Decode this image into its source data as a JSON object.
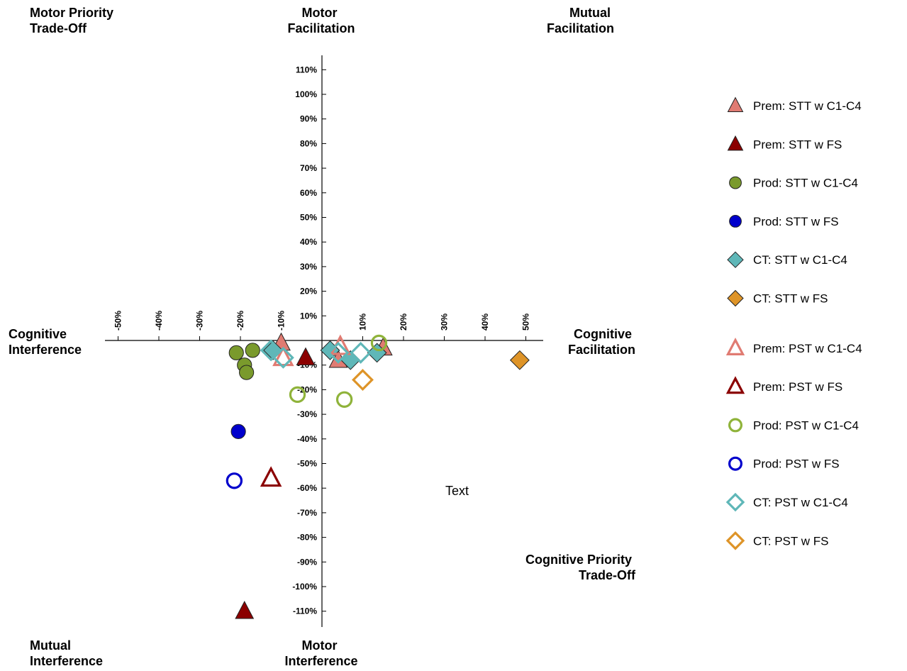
{
  "chart_data": {
    "type": "scatter",
    "title": "",
    "xlabel": "",
    "ylabel": "",
    "xlim": [
      -50,
      50
    ],
    "ylim": [
      -110,
      110
    ],
    "x_ticks": [
      "-50%",
      "-40%",
      "-30%",
      "-20%",
      "-10%",
      "10%",
      "20%",
      "30%",
      "40%",
      "50%"
    ],
    "y_ticks": [
      "110%",
      "100%",
      "90%",
      "80%",
      "70%",
      "60%",
      "50%",
      "40%",
      "30%",
      "20%",
      "10%",
      "-10%",
      "-20%",
      "-30%",
      "-40%",
      "-50%",
      "-60%",
      "-70%",
      "-80%",
      "-90%",
      "-100%",
      "-110%"
    ],
    "quadrant_labels": {
      "top_left": [
        "Motor Priority",
        "Trade-Off"
      ],
      "top_center": [
        "Motor",
        "Facilitation"
      ],
      "top_right": [
        "Mutual",
        "Facilitation"
      ],
      "left": [
        "Cognitive",
        "Interference"
      ],
      "right": [
        "Cognitive",
        "Facilitation"
      ],
      "bottom_right": [
        "Cognitive Priority",
        "Trade-Off"
      ],
      "bottom_left": [
        "Mutual",
        "Interference"
      ],
      "bottom_center": [
        "Motor",
        "Interference"
      ]
    },
    "annotation": "Text",
    "legend_position": "right",
    "series": [
      {
        "name": "Prem: STT w C1-C4",
        "marker": "triangle",
        "filled": true,
        "color": "#e07b72",
        "points": [
          [
            -10,
            -1
          ],
          [
            4,
            -8
          ],
          [
            15,
            -3
          ]
        ]
      },
      {
        "name": "Prem: STT w FS",
        "marker": "triangle",
        "filled": true,
        "color": "#8b0000",
        "points": [
          [
            -4,
            -7
          ],
          [
            -19,
            -110
          ]
        ]
      },
      {
        "name": "Prod: STT w C1-C4",
        "marker": "circle",
        "filled": true,
        "color": "#7a9a2c",
        "points": [
          [
            -21,
            -5
          ],
          [
            -17,
            -4
          ],
          [
            -19,
            -10
          ],
          [
            -18.5,
            -13
          ]
        ]
      },
      {
        "name": "Prod: STT w FS",
        "marker": "circle",
        "filled": true,
        "color": "#0000cc",
        "points": [
          [
            -20.5,
            -37
          ]
        ]
      },
      {
        "name": "CT: STT w C1-C4",
        "marker": "diamond",
        "filled": true,
        "color": "#5fb7b8",
        "points": [
          [
            -12,
            -4
          ],
          [
            2,
            -4
          ],
          [
            7,
            -8
          ],
          [
            13.5,
            -5
          ]
        ]
      },
      {
        "name": "CT: STT w FS",
        "marker": "diamond",
        "filled": true,
        "color": "#de9428",
        "points": [
          [
            48.5,
            -8
          ]
        ]
      },
      {
        "name": "Prem: PST w C1-C4",
        "marker": "triangle",
        "filled": false,
        "color": "#e07b72",
        "points": [
          [
            -9.5,
            -7
          ],
          [
            4.5,
            -2.5
          ]
        ]
      },
      {
        "name": "Prem: PST w FS",
        "marker": "triangle",
        "filled": false,
        "color": "#8b0000",
        "points": [
          [
            -12.5,
            -56
          ]
        ]
      },
      {
        "name": "Prod: PST w C1-C4",
        "marker": "circle",
        "filled": false,
        "color": "#8fb33a",
        "points": [
          [
            -6,
            -22
          ],
          [
            5.5,
            -24
          ],
          [
            14,
            -1
          ]
        ]
      },
      {
        "name": "Prod: PST w FS",
        "marker": "circle",
        "filled": false,
        "color": "#0000cc",
        "points": [
          [
            -21.5,
            -57
          ]
        ]
      },
      {
        "name": "CT: PST w C1-C4",
        "marker": "diamond",
        "filled": false,
        "color": "#5fb7b8",
        "points": [
          [
            -12.5,
            -4
          ],
          [
            -9.5,
            -7
          ],
          [
            4,
            -5
          ],
          [
            9.5,
            -5
          ]
        ]
      },
      {
        "name": "CT: PST w FS",
        "marker": "diamond",
        "filled": false,
        "color": "#de9428",
        "points": [
          [
            10,
            -16
          ]
        ]
      }
    ]
  }
}
